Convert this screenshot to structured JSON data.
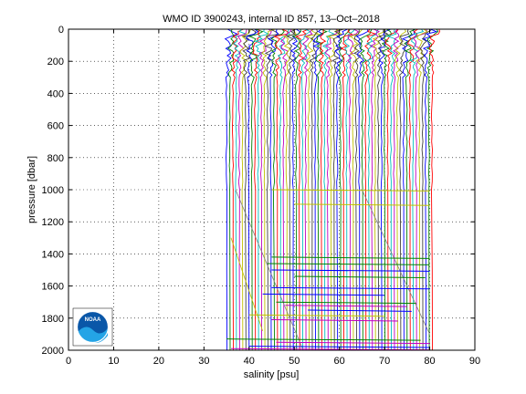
{
  "chart_data": {
    "type": "line",
    "title": "WMO ID 3900243, internal ID 857, 13–Oct–2018",
    "xlabel": "salinity [psu]",
    "ylabel": "pressure [dbar]",
    "xlim": [
      0,
      90
    ],
    "ylim": [
      0,
      2000
    ],
    "y_reversed": true,
    "grid": true,
    "xticks": [
      "0",
      "10",
      "20",
      "30",
      "40",
      "50",
      "60",
      "70",
      "80",
      "90"
    ],
    "yticks": [
      "0",
      "200",
      "400",
      "600",
      "800",
      "1000",
      "1200",
      "1400",
      "1600",
      "1800",
      "2000"
    ],
    "series_colors": [
      "#0000ff",
      "#008000",
      "#ff0000",
      "#00bfbf",
      "#bf00bf",
      "#bfbf00",
      "#404040"
    ],
    "profiles": {
      "start_x": 35,
      "end_x": 80.5,
      "count": 66,
      "offset_step_psu": 0.7,
      "base_pressure_dbar": 1000,
      "deep_pressure_dbar": 2000
    },
    "spikes": [
      {
        "color": "#bfbf00",
        "x1": 45,
        "x2": 80,
        "y": 1000
      },
      {
        "color": "#bfbf00",
        "x1": 50,
        "x2": 80,
        "y": 1090
      },
      {
        "color": "#008000",
        "x1": 45,
        "x2": 80,
        "y": 1420
      },
      {
        "color": "#008000",
        "x1": 44,
        "x2": 80,
        "y": 1460
      },
      {
        "color": "#0000ff",
        "x1": 45,
        "x2": 80,
        "y": 1500
      },
      {
        "color": "#008000",
        "x1": 50,
        "x2": 79,
        "y": 1540
      },
      {
        "color": "#0000ff",
        "x1": 45,
        "x2": 80,
        "y": 1610
      },
      {
        "color": "#0000ff",
        "x1": 43,
        "x2": 70,
        "y": 1650
      },
      {
        "color": "#008000",
        "x1": 46,
        "x2": 77,
        "y": 1700
      },
      {
        "color": "#bf00bf",
        "x1": 48,
        "x2": 75,
        "y": 1720
      },
      {
        "color": "#0000ff",
        "x1": 53,
        "x2": 76,
        "y": 1750
      },
      {
        "color": "#bfbf00",
        "x1": 40,
        "x2": 70,
        "y": 1780
      },
      {
        "color": "#bf00bf",
        "x1": 45,
        "x2": 73,
        "y": 1810
      },
      {
        "color": "#008000",
        "x1": 35,
        "x2": 78,
        "y": 1930
      },
      {
        "color": "#bf00bf",
        "x1": 46,
        "x2": 80,
        "y": 1950
      },
      {
        "color": "#0000ff",
        "x1": 40,
        "x2": 80,
        "y": 1975
      },
      {
        "color": "#bf00bf",
        "x1": 36,
        "x2": 80,
        "y": 1990
      }
    ]
  },
  "logo": {
    "text": "NOAA"
  }
}
